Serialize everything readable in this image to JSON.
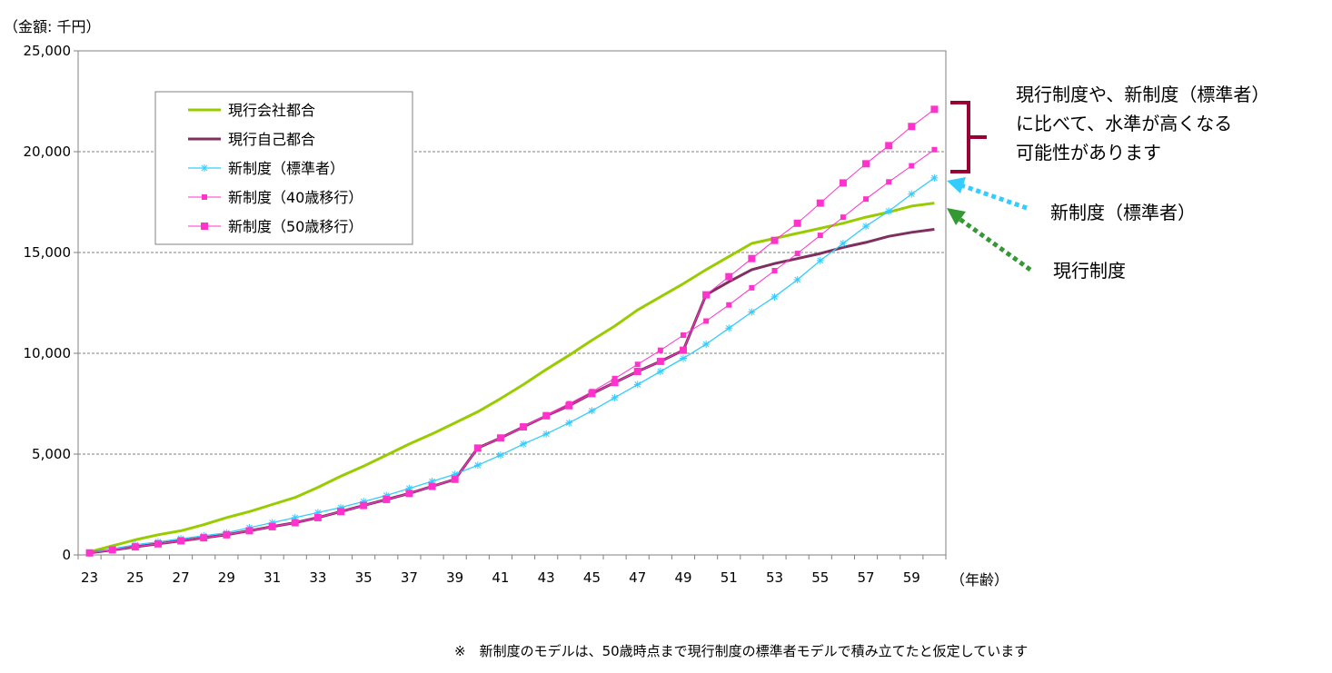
{
  "chart_data": {
    "type": "line",
    "y_unit": "（金額: 千円）",
    "x_unit": "（年齢）",
    "ylim": [
      0,
      25000
    ],
    "yticks": [
      0,
      5000,
      10000,
      15000,
      20000,
      25000
    ],
    "ytick_labels": [
      "0",
      "5,000",
      "10,000",
      "15,000",
      "20,000",
      "25,000"
    ],
    "xtick_labels": [
      "23",
      "25",
      "27",
      "29",
      "31",
      "33",
      "35",
      "37",
      "39",
      "41",
      "43",
      "45",
      "47",
      "49",
      "51",
      "53",
      "55",
      "57",
      "59"
    ],
    "grid": "horizontal dashed",
    "legend_position": "top-left",
    "x": [
      23,
      24,
      25,
      26,
      27,
      28,
      29,
      30,
      31,
      32,
      33,
      34,
      35,
      36,
      37,
      38,
      39,
      40,
      41,
      42,
      43,
      44,
      45,
      46,
      47,
      48,
      49,
      50,
      51,
      52,
      53,
      54,
      55,
      56,
      57,
      58,
      59,
      60
    ],
    "series": [
      {
        "name": "現行会社都合",
        "color": "#99CC00",
        "marker": "none",
        "width": 3,
        "values": [
          150,
          450,
          750,
          1000,
          1200,
          1500,
          1850,
          2150,
          2500,
          2850,
          3350,
          3900,
          4400,
          4950,
          5500,
          6000,
          6550,
          7100,
          7750,
          8450,
          9200,
          9900,
          10650,
          11350,
          12150,
          12800,
          13450,
          14150,
          14800,
          15450,
          15700,
          15950,
          16200,
          16450,
          16750,
          17000,
          17300,
          17450
        ]
      },
      {
        "name": "現行自己都合",
        "color": "#7F2F5E",
        "marker": "none",
        "width": 3,
        "values": [
          100,
          250,
          400,
          550,
          700,
          850,
          1000,
          1200,
          1400,
          1600,
          1850,
          2150,
          2450,
          2750,
          3050,
          3400,
          3750,
          5300,
          5800,
          6350,
          6900,
          7400,
          8000,
          8550,
          9100,
          9600,
          10150,
          12900,
          13550,
          14150,
          14450,
          14700,
          14950,
          15250,
          15500,
          15800,
          16000,
          16150
        ]
      },
      {
        "name": "新制度（標準者）",
        "color": "#33CCFF",
        "marker": "star",
        "width": 1.3,
        "values": [
          100,
          300,
          500,
          650,
          800,
          950,
          1100,
          1350,
          1600,
          1850,
          2100,
          2350,
          2650,
          2950,
          3300,
          3650,
          4000,
          4450,
          4950,
          5500,
          6000,
          6550,
          7150,
          7800,
          8450,
          9100,
          9750,
          10450,
          11250,
          12050,
          12800,
          13650,
          14600,
          15450,
          16300,
          17050,
          17900,
          18700
        ]
      },
      {
        "name": "新制度（40歳移行）",
        "color": "#FF33CC",
        "marker": "square-small",
        "width": 1,
        "values": [
          100,
          250,
          400,
          550,
          700,
          850,
          1000,
          1200,
          1400,
          1600,
          1850,
          2150,
          2450,
          2750,
          3050,
          3400,
          3750,
          5300,
          5800,
          6350,
          6950,
          7500,
          8100,
          8750,
          9450,
          10150,
          10900,
          11600,
          12400,
          13250,
          14100,
          14950,
          15850,
          16750,
          17650,
          18500,
          19300,
          20100
        ]
      },
      {
        "name": "新制度（50歳移行）",
        "color": "#FF33CC",
        "marker": "square",
        "width": 1,
        "values": [
          100,
          250,
          400,
          550,
          700,
          850,
          1000,
          1200,
          1400,
          1600,
          1850,
          2150,
          2450,
          2750,
          3050,
          3400,
          3750,
          5300,
          5800,
          6350,
          6900,
          7400,
          8000,
          8550,
          9100,
          9600,
          10150,
          12900,
          13800,
          14700,
          15600,
          16450,
          17450,
          18450,
          19400,
          20300,
          21250,
          22100
        ]
      }
    ]
  },
  "annotations": {
    "bracket_text": [
      "現行制度や、新制度（標準者）",
      "に比べて、水準が高くなる",
      "可能性があります"
    ],
    "arrow_new_label": "新制度（標準者）",
    "arrow_current_label": "現行制度",
    "bracket_color": "#990033",
    "arrow_new_color": "#33CCFF",
    "arrow_current_color": "#339933"
  },
  "footnote": "※　新制度のモデルは、50歳時点まで現行制度の標準者モデルで積み立てたと仮定しています"
}
